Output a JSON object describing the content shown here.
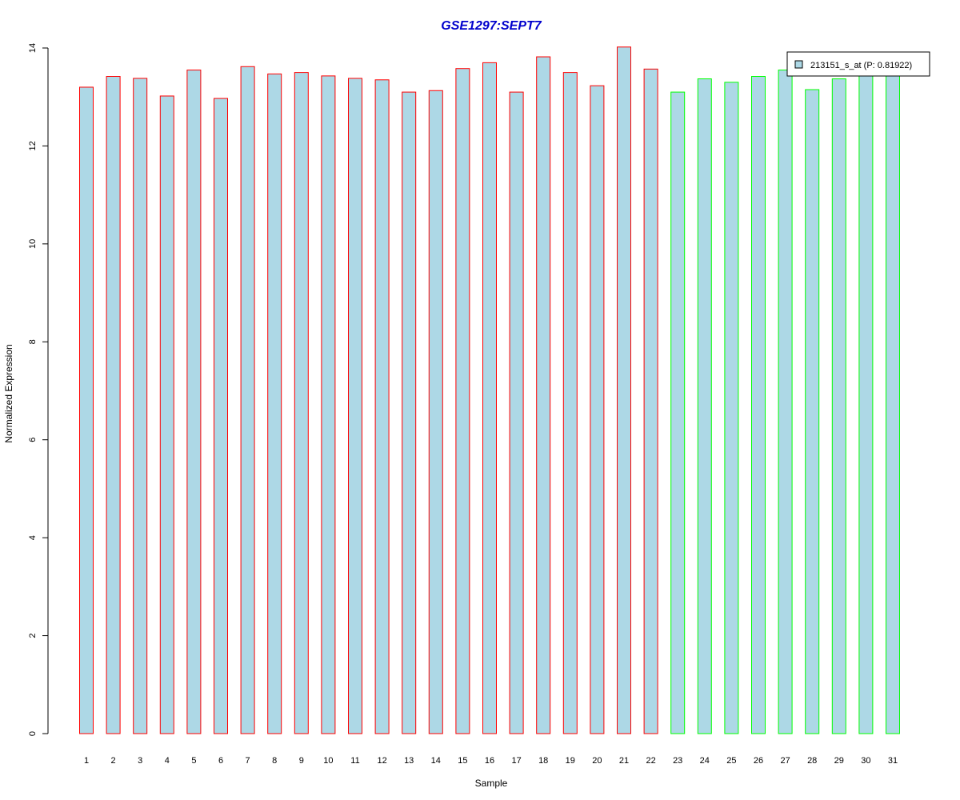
{
  "chart_data": {
    "type": "bar",
    "title": "GSE1297:SEPT7",
    "xlabel": "Sample",
    "ylabel": "Normalized Expression",
    "ylim": [
      0,
      14
    ],
    "yticks": [
      0,
      2,
      4,
      6,
      8,
      10,
      12,
      14
    ],
    "categories": [
      "1",
      "2",
      "3",
      "4",
      "5",
      "6",
      "7",
      "8",
      "9",
      "10",
      "11",
      "12",
      "13",
      "14",
      "15",
      "16",
      "17",
      "18",
      "19",
      "20",
      "21",
      "22",
      "23",
      "24",
      "25",
      "26",
      "27",
      "28",
      "29",
      "30",
      "31"
    ],
    "values": [
      13.2,
      13.42,
      13.38,
      13.02,
      13.55,
      12.97,
      13.62,
      13.47,
      13.5,
      13.43,
      13.38,
      13.35,
      13.1,
      13.13,
      13.58,
      13.7,
      13.1,
      13.82,
      13.5,
      13.23,
      14.02,
      13.57,
      13.1,
      13.37,
      13.3,
      13.42,
      13.55,
      13.15,
      13.37,
      13.5,
      13.45
    ],
    "groups": [
      "a",
      "a",
      "a",
      "a",
      "a",
      "a",
      "a",
      "a",
      "a",
      "a",
      "a",
      "a",
      "a",
      "a",
      "a",
      "a",
      "a",
      "a",
      "a",
      "a",
      "a",
      "a",
      "b",
      "b",
      "b",
      "b",
      "b",
      "b",
      "b",
      "b",
      "b"
    ],
    "group_colors": {
      "a": "#ff0000",
      "b": "#00ff00"
    },
    "bar_fill": "#add8e6",
    "title_color": "#0000cc",
    "grid": false,
    "legend": {
      "placement": "top-right",
      "entries": [
        {
          "label": "213151_s_at (P: 0.81922)",
          "color": "#add8e6"
        }
      ]
    }
  }
}
